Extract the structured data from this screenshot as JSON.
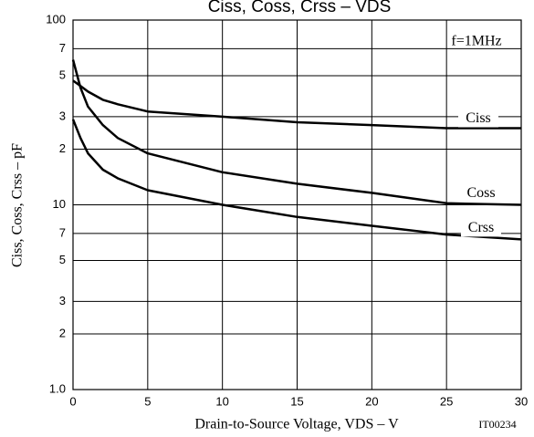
{
  "chart_data": {
    "type": "line",
    "title": "Ciss, Coss, Crss – VDS",
    "x_label": "Drain-to-Source Voltage, VDS – V",
    "y_label": "Ciss, Coss, Crss – pF",
    "annotations": [
      "f=1MHz",
      "IT00234"
    ],
    "x": [
      0,
      0.5,
      1,
      2,
      3,
      5,
      10,
      15,
      20,
      25,
      30
    ],
    "series": [
      {
        "name": "Ciss",
        "color": "#000000",
        "values": [
          47,
          44,
          41,
          37,
          35,
          32,
          30,
          28,
          27,
          26,
          26
        ]
      },
      {
        "name": "Coss",
        "color": "#000000",
        "values": [
          61,
          43,
          34,
          27,
          23,
          19,
          15,
          13,
          11.6,
          10.2,
          10
        ]
      },
      {
        "name": "Crss",
        "color": "#000000",
        "values": [
          29,
          23,
          19,
          15.5,
          13.9,
          12,
          10,
          8.6,
          7.7,
          6.9,
          6.5
        ]
      }
    ],
    "xlim": [
      0,
      30
    ],
    "xticks": [
      0,
      5,
      10,
      15,
      20,
      25,
      30
    ],
    "ylim": [
      1,
      100
    ],
    "yticks": [
      {
        "value": 1,
        "label": "1.0"
      },
      2,
      3,
      5,
      7,
      10,
      {
        "value": 20,
        "label": "2"
      },
      {
        "value": 30,
        "label": "3"
      },
      {
        "value": 50,
        "label": "5"
      },
      {
        "value": 70,
        "label": "7"
      },
      100
    ],
    "y_scale": "log",
    "grid": true
  }
}
